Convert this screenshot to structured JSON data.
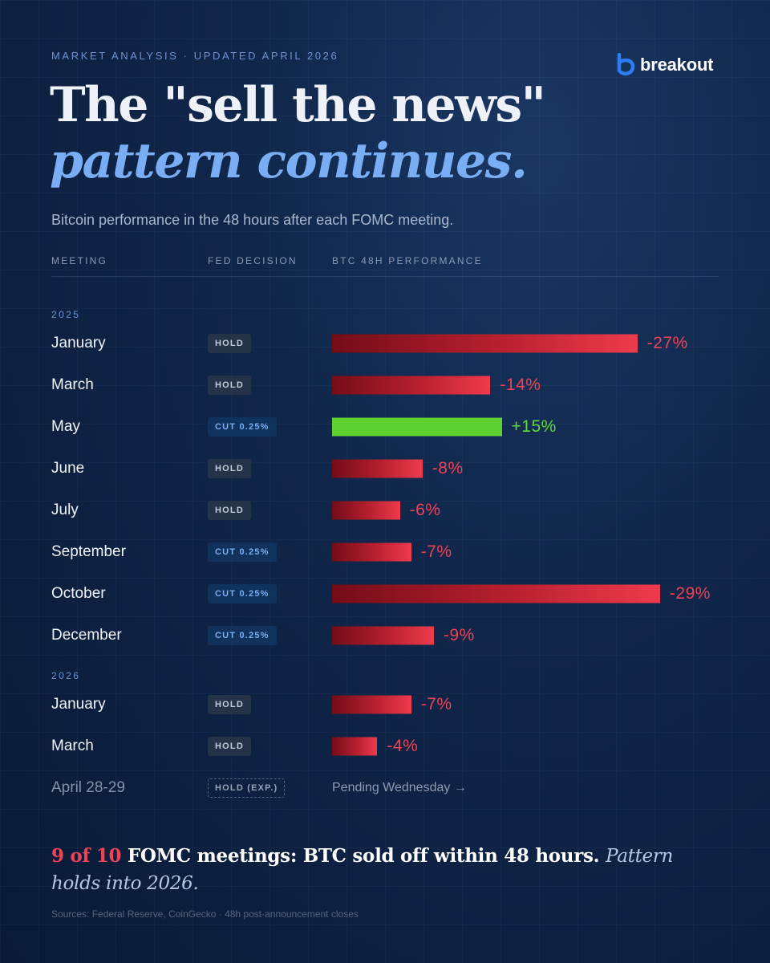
{
  "eyebrow": "MARKET ANALYSIS · UPDATED APRIL 2026",
  "brand": {
    "name": "breakout",
    "logo_icon": "b-mark-icon",
    "color": "#2f7df6"
  },
  "title": {
    "line1": "The \"sell the news\"",
    "line2": "pattern continues."
  },
  "subtitle": "Bitcoin performance in the 48 hours after each FOMC meeting.",
  "columns": {
    "meeting": "MEETING",
    "decision": "FED DECISION",
    "performance": "BTC 48H PERFORMANCE"
  },
  "colors": {
    "negative": "#ec4455",
    "positive": "#62d93a",
    "accent": "#79aef4",
    "background": "#0d2040"
  },
  "chart_data": {
    "type": "bar",
    "orientation": "horizontal",
    "unit": "%",
    "groups": [
      {
        "year": "2025",
        "rows": [
          {
            "meeting": "January",
            "decision": "HOLD",
            "decision_type": "hold",
            "value": -27,
            "label": "-27%"
          },
          {
            "meeting": "March",
            "decision": "HOLD",
            "decision_type": "hold",
            "value": -14,
            "label": "-14%"
          },
          {
            "meeting": "May",
            "decision": "CUT 0.25%",
            "decision_type": "cut",
            "value": 15,
            "label": "+15%"
          },
          {
            "meeting": "June",
            "decision": "HOLD",
            "decision_type": "hold",
            "value": -8,
            "label": "-8%"
          },
          {
            "meeting": "July",
            "decision": "HOLD",
            "decision_type": "hold",
            "value": -6,
            "label": "-6%"
          },
          {
            "meeting": "September",
            "decision": "CUT 0.25%",
            "decision_type": "cut",
            "value": -7,
            "label": "-7%"
          },
          {
            "meeting": "October",
            "decision": "CUT 0.25%",
            "decision_type": "cut",
            "value": -29,
            "label": "-29%"
          },
          {
            "meeting": "December",
            "decision": "CUT 0.25%",
            "decision_type": "cut",
            "value": -9,
            "label": "-9%"
          }
        ]
      },
      {
        "year": "2026",
        "rows": [
          {
            "meeting": "January",
            "decision": "HOLD",
            "decision_type": "hold",
            "value": -7,
            "label": "-7%"
          },
          {
            "meeting": "March",
            "decision": "HOLD",
            "decision_type": "hold",
            "value": -4,
            "label": "-4%"
          },
          {
            "meeting": "April 28-29",
            "decision": "HOLD (EXP.)",
            "decision_type": "expected",
            "value": null,
            "label": "Pending Wednesday →"
          }
        ]
      }
    ]
  },
  "takeaway": {
    "highlight": "9 of 10",
    "main": " FOMC meetings: BTC sold off within 48 hours. ",
    "italic": "Pattern holds into 2026."
  },
  "sources": "Sources: Federal Reserve, CoinGecko · 48h post-announcement closes"
}
